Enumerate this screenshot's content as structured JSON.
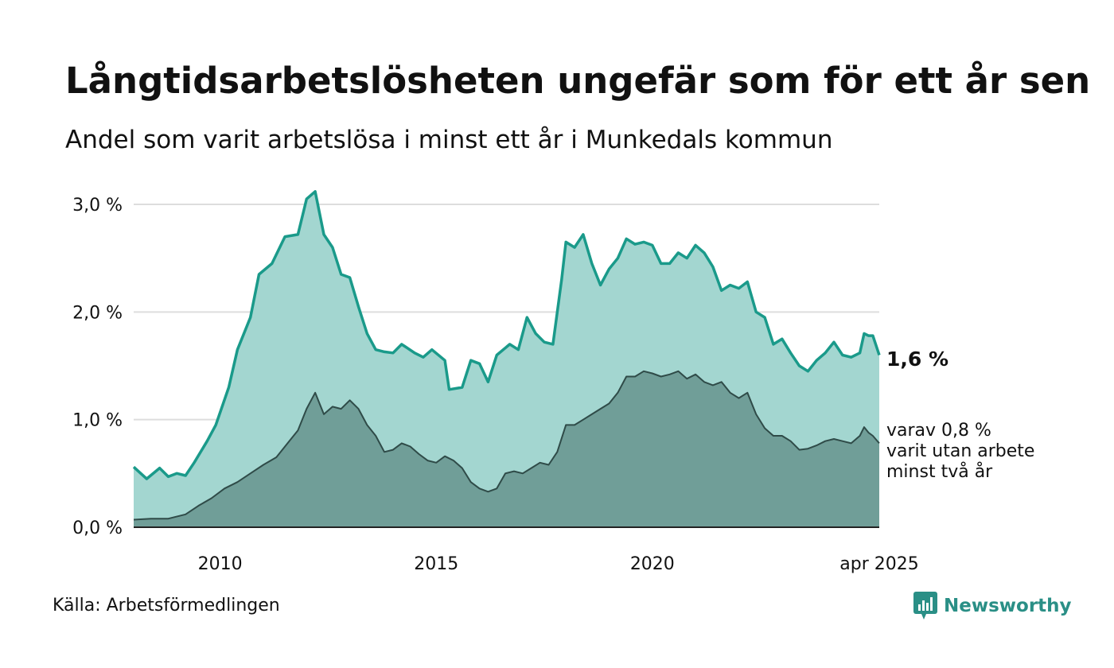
{
  "header": {
    "title": "Långtidsarbetslösheten ungefär som för ett år sen",
    "subtitle": "Andel som varit arbetslösa i minst ett år i Munkedals kommun"
  },
  "footer": {
    "source": "Källa: Arbetsförmedlingen",
    "brand": "Newsworthy"
  },
  "colors": {
    "total_line": "#1a9a8a",
    "total_fill": "#a3d6d0",
    "long_fill": "#709e98",
    "long_line": "#2f4b48",
    "grid": "#dddddd",
    "brand": "#2a8f86"
  },
  "chart_data": {
    "type": "area",
    "x_start": "2008-01",
    "x_end": "2025-04",
    "x_ticks": [
      {
        "value": 2010,
        "label": "2010"
      },
      {
        "value": 2015,
        "label": "2015"
      },
      {
        "value": 2020,
        "label": "2020"
      },
      {
        "value": 2025.25,
        "label": "apr 2025"
      }
    ],
    "y_ticks": [
      {
        "value": 0,
        "label": "0,0 %"
      },
      {
        "value": 1,
        "label": "1,0 %"
      },
      {
        "value": 2,
        "label": "2,0 %"
      },
      {
        "value": 3,
        "label": "3,0 %"
      }
    ],
    "ylim": [
      0,
      3
    ],
    "grid": true,
    "end_label_main": "1,6 %",
    "end_label_sub": [
      "varav 0,8 %",
      "varit utan arbete",
      "minst två år"
    ],
    "series": [
      {
        "points": [
          [
            2008.0,
            0.56
          ],
          [
            2008.3,
            0.45
          ],
          [
            2008.6,
            0.55
          ],
          [
            2008.8,
            0.47
          ],
          [
            2009.0,
            0.5
          ],
          [
            2009.2,
            0.48
          ],
          [
            2009.4,
            0.6
          ],
          [
            2009.7,
            0.8
          ],
          [
            2009.9,
            0.95
          ],
          [
            2010.2,
            1.3
          ],
          [
            2010.4,
            1.65
          ],
          [
            2010.7,
            1.95
          ],
          [
            2010.9,
            2.35
          ],
          [
            2011.2,
            2.45
          ],
          [
            2011.5,
            2.7
          ],
          [
            2011.8,
            2.72
          ],
          [
            2012.0,
            3.05
          ],
          [
            2012.2,
            3.12
          ],
          [
            2012.4,
            2.72
          ],
          [
            2012.6,
            2.6
          ],
          [
            2012.8,
            2.35
          ],
          [
            2013.0,
            2.32
          ],
          [
            2013.2,
            2.05
          ],
          [
            2013.4,
            1.8
          ],
          [
            2013.6,
            1.65
          ],
          [
            2013.8,
            1.63
          ],
          [
            2014.0,
            1.62
          ],
          [
            2014.2,
            1.7
          ],
          [
            2014.5,
            1.62
          ],
          [
            2014.7,
            1.58
          ],
          [
            2014.9,
            1.65
          ],
          [
            2015.2,
            1.55
          ],
          [
            2015.3,
            1.28
          ],
          [
            2015.6,
            1.3
          ],
          [
            2015.8,
            1.55
          ],
          [
            2016.0,
            1.52
          ],
          [
            2016.2,
            1.35
          ],
          [
            2016.4,
            1.6
          ],
          [
            2016.7,
            1.7
          ],
          [
            2016.9,
            1.65
          ],
          [
            2017.1,
            1.95
          ],
          [
            2017.3,
            1.8
          ],
          [
            2017.5,
            1.72
          ],
          [
            2017.7,
            1.7
          ],
          [
            2017.9,
            2.3
          ],
          [
            2018.0,
            2.65
          ],
          [
            2018.2,
            2.6
          ],
          [
            2018.4,
            2.72
          ],
          [
            2018.6,
            2.45
          ],
          [
            2018.8,
            2.25
          ],
          [
            2019.0,
            2.4
          ],
          [
            2019.2,
            2.5
          ],
          [
            2019.4,
            2.68
          ],
          [
            2019.6,
            2.63
          ],
          [
            2019.8,
            2.65
          ],
          [
            2020.0,
            2.62
          ],
          [
            2020.2,
            2.45
          ],
          [
            2020.4,
            2.45
          ],
          [
            2020.6,
            2.55
          ],
          [
            2020.8,
            2.5
          ],
          [
            2021.0,
            2.62
          ],
          [
            2021.2,
            2.55
          ],
          [
            2021.4,
            2.42
          ],
          [
            2021.6,
            2.2
          ],
          [
            2021.8,
            2.25
          ],
          [
            2022.0,
            2.22
          ],
          [
            2022.2,
            2.28
          ],
          [
            2022.4,
            2.0
          ],
          [
            2022.6,
            1.95
          ],
          [
            2022.8,
            1.7
          ],
          [
            2023.0,
            1.75
          ],
          [
            2023.2,
            1.62
          ],
          [
            2023.4,
            1.5
          ],
          [
            2023.6,
            1.45
          ],
          [
            2023.8,
            1.55
          ],
          [
            2024.0,
            1.62
          ],
          [
            2024.2,
            1.72
          ],
          [
            2024.4,
            1.6
          ],
          [
            2024.6,
            1.58
          ],
          [
            2024.8,
            1.62
          ],
          [
            2024.9,
            1.8
          ],
          [
            2025.0,
            1.78
          ],
          [
            2025.1,
            1.78
          ],
          [
            2025.25,
            1.6
          ]
        ]
      },
      {
        "points": [
          [
            2008.0,
            0.07
          ],
          [
            2008.4,
            0.08
          ],
          [
            2008.8,
            0.08
          ],
          [
            2009.2,
            0.12
          ],
          [
            2009.5,
            0.2
          ],
          [
            2009.8,
            0.27
          ],
          [
            2010.1,
            0.36
          ],
          [
            2010.4,
            0.42
          ],
          [
            2010.7,
            0.5
          ],
          [
            2011.0,
            0.58
          ],
          [
            2011.3,
            0.65
          ],
          [
            2011.6,
            0.8
          ],
          [
            2011.8,
            0.9
          ],
          [
            2012.0,
            1.1
          ],
          [
            2012.2,
            1.25
          ],
          [
            2012.4,
            1.05
          ],
          [
            2012.6,
            1.12
          ],
          [
            2012.8,
            1.1
          ],
          [
            2013.0,
            1.18
          ],
          [
            2013.2,
            1.1
          ],
          [
            2013.4,
            0.95
          ],
          [
            2013.6,
            0.85
          ],
          [
            2013.8,
            0.7
          ],
          [
            2014.0,
            0.72
          ],
          [
            2014.2,
            0.78
          ],
          [
            2014.4,
            0.75
          ],
          [
            2014.6,
            0.68
          ],
          [
            2014.8,
            0.62
          ],
          [
            2015.0,
            0.6
          ],
          [
            2015.2,
            0.66
          ],
          [
            2015.4,
            0.62
          ],
          [
            2015.6,
            0.55
          ],
          [
            2015.8,
            0.42
          ],
          [
            2016.0,
            0.36
          ],
          [
            2016.2,
            0.33
          ],
          [
            2016.4,
            0.36
          ],
          [
            2016.6,
            0.5
          ],
          [
            2016.8,
            0.52
          ],
          [
            2017.0,
            0.5
          ],
          [
            2017.2,
            0.55
          ],
          [
            2017.4,
            0.6
          ],
          [
            2017.6,
            0.58
          ],
          [
            2017.8,
            0.7
          ],
          [
            2018.0,
            0.95
          ],
          [
            2018.2,
            0.95
          ],
          [
            2018.4,
            1.0
          ],
          [
            2018.6,
            1.05
          ],
          [
            2018.8,
            1.1
          ],
          [
            2019.0,
            1.15
          ],
          [
            2019.2,
            1.25
          ],
          [
            2019.4,
            1.4
          ],
          [
            2019.6,
            1.4
          ],
          [
            2019.8,
            1.45
          ],
          [
            2020.0,
            1.43
          ],
          [
            2020.2,
            1.4
          ],
          [
            2020.4,
            1.42
          ],
          [
            2020.6,
            1.45
          ],
          [
            2020.8,
            1.38
          ],
          [
            2021.0,
            1.42
          ],
          [
            2021.2,
            1.35
          ],
          [
            2021.4,
            1.32
          ],
          [
            2021.6,
            1.35
          ],
          [
            2021.8,
            1.25
          ],
          [
            2022.0,
            1.2
          ],
          [
            2022.2,
            1.25
          ],
          [
            2022.4,
            1.05
          ],
          [
            2022.6,
            0.92
          ],
          [
            2022.8,
            0.85
          ],
          [
            2023.0,
            0.85
          ],
          [
            2023.2,
            0.8
          ],
          [
            2023.4,
            0.72
          ],
          [
            2023.6,
            0.73
          ],
          [
            2023.8,
            0.76
          ],
          [
            2024.0,
            0.8
          ],
          [
            2024.2,
            0.82
          ],
          [
            2024.4,
            0.8
          ],
          [
            2024.6,
            0.78
          ],
          [
            2024.8,
            0.85
          ],
          [
            2024.9,
            0.93
          ],
          [
            2025.0,
            0.88
          ],
          [
            2025.1,
            0.85
          ],
          [
            2025.25,
            0.78
          ]
        ]
      }
    ]
  }
}
